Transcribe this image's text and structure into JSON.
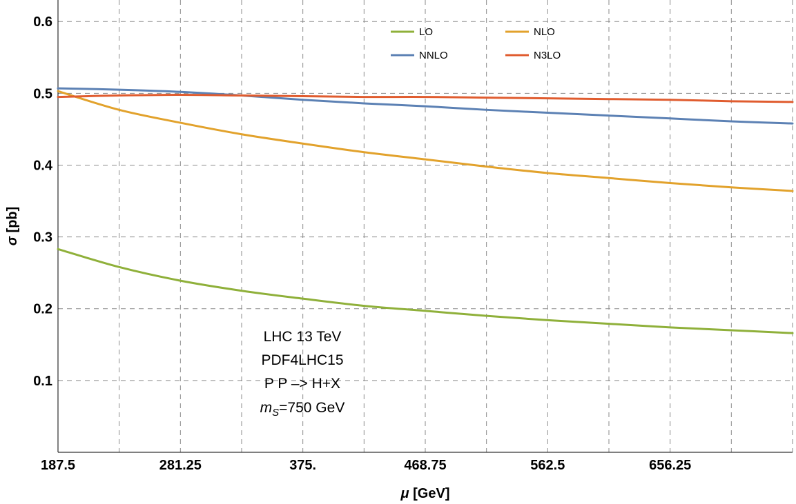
{
  "chart_data": {
    "type": "line",
    "xlabel_symbol": "μ",
    "xlabel_unit": " [GeV]",
    "ylabel_symbol": "σ",
    "ylabel_unit": " [pb]",
    "xlim": [
      187.5,
      750
    ],
    "ylim": [
      0,
      0.63
    ],
    "x_ticks": [
      187.5,
      281.25,
      375,
      468.75,
      562.5,
      656.25
    ],
    "x_tick_labels": [
      "187.5",
      "281.25",
      "375.",
      "468.75",
      "562.5",
      "656.25"
    ],
    "x_minor_grid": [
      234.375,
      328.125,
      421.875,
      515.625,
      609.375,
      703.125
    ],
    "y_ticks": [
      0.1,
      0.2,
      0.3,
      0.4,
      0.5,
      0.6
    ],
    "y_tick_labels": [
      "0.1",
      "0.2",
      "0.3",
      "0.4",
      "0.5",
      "0.6"
    ],
    "grid": true,
    "legend_position": "top-center",
    "series": [
      {
        "name": "LO",
        "color": "#8fb03a",
        "x": [
          187.5,
          234.375,
          281.25,
          328.125,
          375,
          421.875,
          468.75,
          515.625,
          562.5,
          609.375,
          656.25,
          703.125,
          750
        ],
        "values": [
          0.283,
          0.258,
          0.239,
          0.225,
          0.214,
          0.204,
          0.197,
          0.19,
          0.184,
          0.179,
          0.174,
          0.17,
          0.166
        ]
      },
      {
        "name": "NLO",
        "color": "#e2a22c",
        "x": [
          187.5,
          234.375,
          281.25,
          328.125,
          375,
          421.875,
          468.75,
          515.625,
          562.5,
          609.375,
          656.25,
          703.125,
          750
        ],
        "values": [
          0.503,
          0.477,
          0.459,
          0.443,
          0.43,
          0.418,
          0.408,
          0.398,
          0.389,
          0.382,
          0.375,
          0.369,
          0.364
        ]
      },
      {
        "name": "NNLO",
        "color": "#5c81b4",
        "x": [
          187.5,
          234.375,
          281.25,
          328.125,
          375,
          421.875,
          468.75,
          515.625,
          562.5,
          609.375,
          656.25,
          703.125,
          750
        ],
        "values": [
          0.507,
          0.505,
          0.502,
          0.497,
          0.491,
          0.486,
          0.482,
          0.477,
          0.473,
          0.469,
          0.465,
          0.461,
          0.458
        ]
      },
      {
        "name": "N3LO",
        "color": "#e05c2f",
        "x": [
          187.5,
          234.375,
          281.25,
          328.125,
          375,
          421.875,
          468.75,
          515.625,
          562.5,
          609.375,
          656.25,
          703.125,
          750
        ],
        "values": [
          0.495,
          0.497,
          0.498,
          0.497,
          0.496,
          0.495,
          0.495,
          0.494,
          0.493,
          0.492,
          0.491,
          0.489,
          0.488
        ]
      }
    ],
    "annotation": {
      "line1": "LHC 13 TeV",
      "line2": "PDF4LHC15",
      "line3": "P P ‒> H+X",
      "line4_symbol": "m",
      "line4_sub": "S",
      "line4_rest": "=750 GeV"
    }
  }
}
